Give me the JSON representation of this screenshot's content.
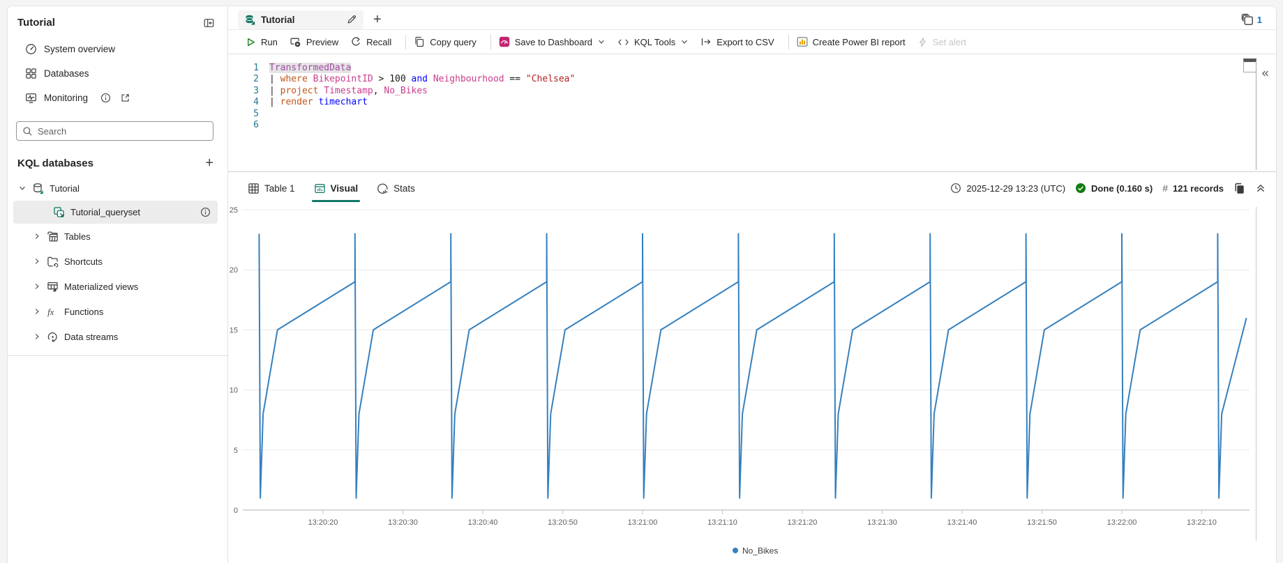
{
  "sidebar": {
    "title": "Tutorial",
    "collapse_icon": "collapse-pane-icon",
    "nav": [
      {
        "label": "System overview",
        "icon": "gauge-icon"
      },
      {
        "label": "Databases",
        "icon": "grid-icon"
      },
      {
        "label": "Monitoring",
        "icon": "monitor-pulse-icon",
        "extra_icons": [
          "info-icon",
          "external-link-icon"
        ]
      }
    ],
    "search": {
      "placeholder": "Search",
      "icon": "search-icon"
    },
    "section_title": "KQL databases",
    "add_icon": "plus-icon",
    "tree": [
      {
        "label": "Tutorial",
        "icon": "database-icon",
        "expanded": true
      },
      {
        "label": "Tutorial_queryset",
        "icon": "queryset-icon",
        "selected": true,
        "trailing_icon": "info-icon"
      },
      {
        "label": "Tables",
        "icon": "tables-icon"
      },
      {
        "label": "Shortcuts",
        "icon": "shortcuts-icon"
      },
      {
        "label": "Materialized views",
        "icon": "materialized-views-icon"
      },
      {
        "label": "Functions",
        "icon": "fx-icon"
      },
      {
        "label": "Data streams",
        "icon": "data-streams-icon"
      }
    ]
  },
  "tabbar": {
    "tab_label": "Tutorial",
    "tab_icon": "kql-database-icon",
    "edit_icon": "pencil-icon",
    "new_tab_icon": "plus-icon",
    "open_count": "1",
    "open_count_icon": "stacked-tabs-icon"
  },
  "toolbar": {
    "run": "Run",
    "preview": "Preview",
    "recall": "Recall",
    "copy_query": "Copy query",
    "save_to_dashboard": "Save to Dashboard",
    "kql_tools": "KQL Tools",
    "export_csv": "Export to CSV",
    "create_pbi": "Create Power BI report",
    "set_alert": "Set alert"
  },
  "editor": {
    "line_numbers": [
      "1",
      "2",
      "3",
      "4",
      "5",
      "6"
    ],
    "lines": [
      [
        {
          "t": "TransformedData",
          "c": "tbl hl"
        }
      ],
      [
        {
          "t": "| ",
          "c": ""
        },
        {
          "t": "where",
          "c": "kw"
        },
        {
          "t": " ",
          "c": ""
        },
        {
          "t": "BikepointID",
          "c": "col"
        },
        {
          "t": " > ",
          "c": ""
        },
        {
          "t": "100",
          "c": ""
        },
        {
          "t": " ",
          "c": ""
        },
        {
          "t": "and",
          "c": "bkw"
        },
        {
          "t": " ",
          "c": ""
        },
        {
          "t": "Neighbourhood",
          "c": "col"
        },
        {
          "t": " == ",
          "c": ""
        },
        {
          "t": "\"Chelsea\"",
          "c": "str"
        }
      ],
      [
        {
          "t": "| ",
          "c": ""
        },
        {
          "t": "project",
          "c": "kw"
        },
        {
          "t": " ",
          "c": ""
        },
        {
          "t": "Timestamp",
          "c": "col"
        },
        {
          "t": ", ",
          "c": ""
        },
        {
          "t": "No_Bikes",
          "c": "col"
        }
      ],
      [
        {
          "t": "| ",
          "c": ""
        },
        {
          "t": "render",
          "c": "kw"
        },
        {
          "t": " ",
          "c": ""
        },
        {
          "t": "timechart",
          "c": "bkw"
        }
      ],
      [],
      []
    ]
  },
  "results": {
    "tabs": [
      {
        "label": "Table 1",
        "icon": "table-grid-icon"
      },
      {
        "label": "Visual",
        "icon": "visual-chart-icon"
      },
      {
        "label": "Stats",
        "icon": "stats-icon"
      }
    ],
    "active_tab": "Visual",
    "timestamp": "2025-12-29 13:23 (UTC)",
    "status": "Done (0.160 s)",
    "hash": "#",
    "records": "121 records",
    "icons": [
      "clock-icon",
      "check-circle-icon",
      "copy-results-icon",
      "collapse-results-icon"
    ]
  },
  "colors": {
    "accent_teal": "#117865",
    "run_green": "#107c10",
    "done_green": "#107c10",
    "dashboard_pink": "#c4246e",
    "powerbi_yellow": "#dda200",
    "count_blue": "#0f6cbd",
    "line_blue": "#3580bf"
  },
  "chart_data": {
    "type": "line",
    "title": "",
    "xlabel": "",
    "ylabel": "",
    "ylim": [
      0,
      25
    ],
    "y_ticks": [
      0,
      5,
      10,
      15,
      20,
      25
    ],
    "grid": true,
    "x_start_time": "13:20:10",
    "x_ticks": [
      {
        "t": 10,
        "label": "13:20:20"
      },
      {
        "t": 20,
        "label": "13:20:30"
      },
      {
        "t": 30,
        "label": "13:20:40"
      },
      {
        "t": 40,
        "label": "13:20:50"
      },
      {
        "t": 50,
        "label": "13:21:00"
      },
      {
        "t": 60,
        "label": "13:21:10"
      },
      {
        "t": 70,
        "label": "13:21:20"
      },
      {
        "t": 80,
        "label": "13:21:30"
      },
      {
        "t": 90,
        "label": "13:21:40"
      },
      {
        "t": 100,
        "label": "13:21:50"
      },
      {
        "t": 110,
        "label": "13:22:00"
      },
      {
        "t": 120,
        "label": "13:22:10"
      }
    ],
    "series": [
      {
        "name": "No_Bikes",
        "color": "#3580bf",
        "points": [
          [
            2,
            23
          ],
          [
            2.15,
            1
          ],
          [
            2.5,
            8
          ],
          [
            4.3,
            15
          ],
          [
            14,
            19
          ],
          [
            14,
            23
          ],
          [
            14.15,
            1
          ],
          [
            14.5,
            8
          ],
          [
            16.3,
            15
          ],
          [
            26,
            19
          ],
          [
            26,
            23
          ],
          [
            26.15,
            1
          ],
          [
            26.5,
            8
          ],
          [
            28.3,
            15
          ],
          [
            38,
            19
          ],
          [
            38,
            23
          ],
          [
            38.15,
            1
          ],
          [
            38.5,
            8
          ],
          [
            40.3,
            15
          ],
          [
            50,
            19
          ],
          [
            50,
            23
          ],
          [
            50.15,
            1
          ],
          [
            50.5,
            8
          ],
          [
            52.3,
            15
          ],
          [
            62,
            19
          ],
          [
            62,
            23
          ],
          [
            62.15,
            1
          ],
          [
            62.5,
            8
          ],
          [
            64.3,
            15
          ],
          [
            74,
            19
          ],
          [
            74,
            23
          ],
          [
            74.15,
            1
          ],
          [
            74.5,
            8
          ],
          [
            76.3,
            15
          ],
          [
            86,
            19
          ],
          [
            86,
            23
          ],
          [
            86.15,
            1
          ],
          [
            86.5,
            8
          ],
          [
            88.3,
            15
          ],
          [
            98,
            19
          ],
          [
            98,
            23
          ],
          [
            98.15,
            1
          ],
          [
            98.5,
            8
          ],
          [
            100.3,
            15
          ],
          [
            110,
            19
          ],
          [
            110,
            23
          ],
          [
            110.15,
            1
          ],
          [
            110.5,
            8
          ],
          [
            112.3,
            15
          ],
          [
            122,
            19
          ],
          [
            122,
            23
          ],
          [
            122.15,
            1
          ],
          [
            122.5,
            8
          ],
          [
            125.6,
            16
          ]
        ]
      }
    ],
    "legend": {
      "position": "bottom-center",
      "items": [
        {
          "label": "No_Bikes",
          "color": "#3580bf"
        }
      ]
    }
  }
}
